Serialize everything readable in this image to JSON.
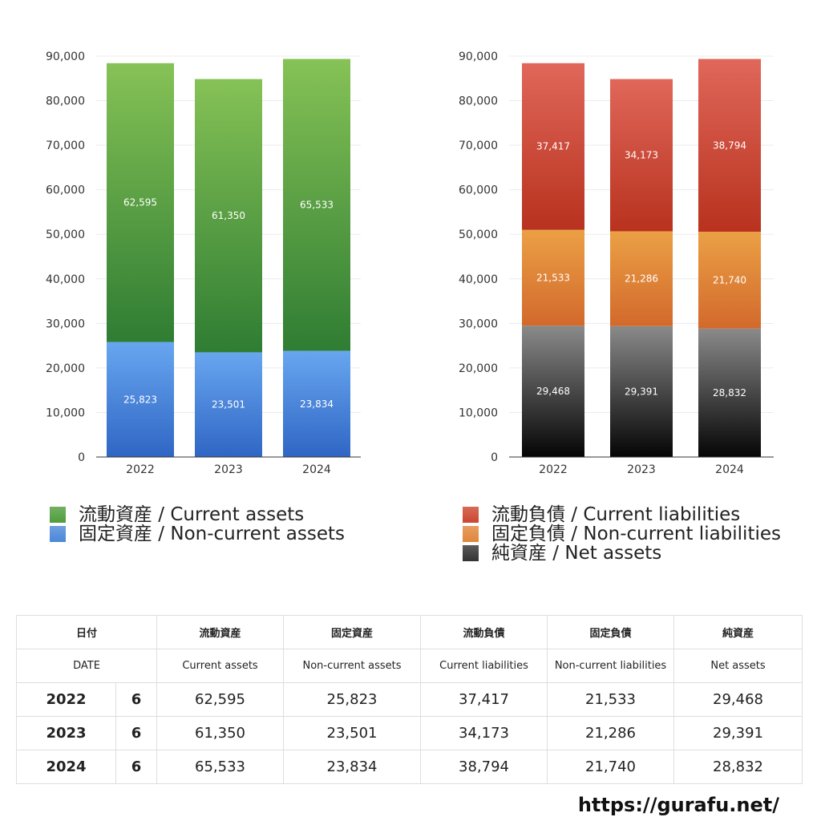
{
  "colors": {
    "current_assets": "#4f9d3b",
    "non_current_assets": "#4b87d9",
    "current_liabilities": "#cc4630",
    "non_current_liabilities": "#e0863a",
    "net_assets": "#333333"
  },
  "chart_data": [
    {
      "type": "bar",
      "stacked": true,
      "categories": [
        "2022",
        "2023",
        "2024"
      ],
      "series": [
        {
          "name": "固定資産 / Non-current assets",
          "values": [
            25823,
            23501,
            23834
          ],
          "color": "#4b87d9"
        },
        {
          "name": "流動資産 / Current assets",
          "values": [
            62595,
            61350,
            65533
          ],
          "color": "#4f9d3b"
        }
      ],
      "ylim": [
        0,
        90000
      ],
      "yticks": [
        0,
        10000,
        20000,
        30000,
        40000,
        50000,
        60000,
        70000,
        80000,
        90000
      ],
      "ytick_labels": [
        "0",
        "10,000",
        "20,000",
        "30,000",
        "40,000",
        "50,000",
        "60,000",
        "70,000",
        "80,000",
        "90,000"
      ],
      "grid": true,
      "legend_position": "bottom"
    },
    {
      "type": "bar",
      "stacked": true,
      "categories": [
        "2022",
        "2023",
        "2024"
      ],
      "series": [
        {
          "name": "純資産 / Net assets",
          "values": [
            29468,
            29391,
            28832
          ],
          "color": "#333333"
        },
        {
          "name": "固定負債 / Non-current liabilities",
          "values": [
            21533,
            21286,
            21740
          ],
          "color": "#e0863a"
        },
        {
          "name": "流動負債 / Current liabilities",
          "values": [
            37417,
            34173,
            38794
          ],
          "color": "#cc4630"
        }
      ],
      "ylim": [
        0,
        90000
      ],
      "yticks": [
        0,
        10000,
        20000,
        30000,
        40000,
        50000,
        60000,
        70000,
        80000,
        90000
      ],
      "ytick_labels": [
        "0",
        "10,000",
        "20,000",
        "30,000",
        "40,000",
        "50,000",
        "60,000",
        "70,000",
        "80,000",
        "90,000"
      ],
      "grid": true,
      "legend_position": "bottom"
    }
  ],
  "legend_left": [
    {
      "label": "流動資産 / Current assets",
      "color": "#4f9d3b"
    },
    {
      "label": "固定資産 / Non-current assets",
      "color": "#4b87d9"
    }
  ],
  "legend_right": [
    {
      "label": "流動負債 / Current liabilities",
      "color": "#cc4630"
    },
    {
      "label": "固定負債 / Non-current liabilities",
      "color": "#e0863a"
    },
    {
      "label": "純資産 / Net assets",
      "color": "#333333"
    }
  ],
  "table": {
    "header_jp": [
      "日付",
      "流動資産",
      "固定資産",
      "流動負債",
      "固定負債",
      "純資産"
    ],
    "header_en": [
      "DATE",
      "Current assets",
      "Non-current assets",
      "Current liabilities",
      "Non-current liabilities",
      "Net assets"
    ],
    "rows": [
      {
        "year": "2022",
        "month": "6",
        "values": [
          "62,595",
          "25,823",
          "37,417",
          "21,533",
          "29,468"
        ]
      },
      {
        "year": "2023",
        "month": "6",
        "values": [
          "61,350",
          "23,501",
          "34,173",
          "21,286",
          "29,391"
        ]
      },
      {
        "year": "2024",
        "month": "6",
        "values": [
          "65,533",
          "23,834",
          "38,794",
          "21,740",
          "28,832"
        ]
      }
    ]
  },
  "site_url": "https://gurafu.net/"
}
